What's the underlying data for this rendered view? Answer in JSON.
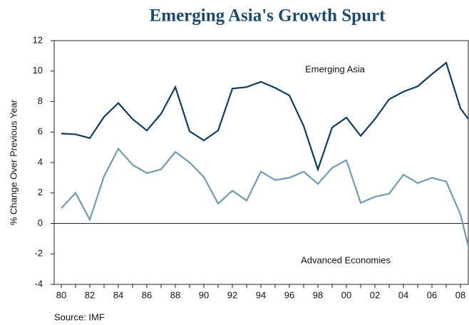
{
  "chart_data": {
    "type": "line",
    "title": "Emerging Asia's Growth Spurt",
    "y_label": "% Change Over Previous Year",
    "source": "Source: IMF",
    "categories": [
      "80",
      null,
      "82",
      null,
      "84",
      null,
      "86",
      null,
      "88",
      null,
      "90",
      null,
      "92",
      null,
      "94",
      null,
      "96",
      null,
      "98",
      null,
      "00",
      null,
      "02",
      null,
      "04",
      null,
      "06",
      null,
      "08",
      null
    ],
    "series": [
      {
        "name": "Emerging Asia",
        "color": "#0e3d63",
        "values": [
          5.9,
          5.85,
          5.6,
          7.0,
          7.9,
          6.85,
          6.1,
          7.2,
          8.95,
          6.05,
          5.45,
          6.1,
          8.85,
          8.95,
          9.3,
          8.9,
          8.4,
          6.4,
          3.55,
          6.3,
          6.95,
          5.75,
          6.85,
          8.15,
          8.65,
          9.0,
          9.8,
          10.55,
          7.55,
          6.3
        ]
      },
      {
        "name": "Advanced Economies",
        "color": "#6f9bb5",
        "values": [
          1.0,
          2.0,
          0.25,
          3.1,
          4.9,
          3.85,
          3.3,
          3.55,
          4.7,
          4.0,
          3.05,
          1.3,
          2.15,
          1.5,
          3.4,
          2.85,
          3.0,
          3.4,
          2.6,
          3.65,
          4.15,
          1.35,
          1.75,
          1.95,
          3.2,
          2.65,
          3.0,
          2.75,
          0.6,
          -3.2
        ]
      }
    ],
    "ylim": [
      -4,
      12
    ],
    "yticks": [
      -4,
      -2,
      0,
      2,
      4,
      6,
      8,
      10,
      12
    ]
  }
}
